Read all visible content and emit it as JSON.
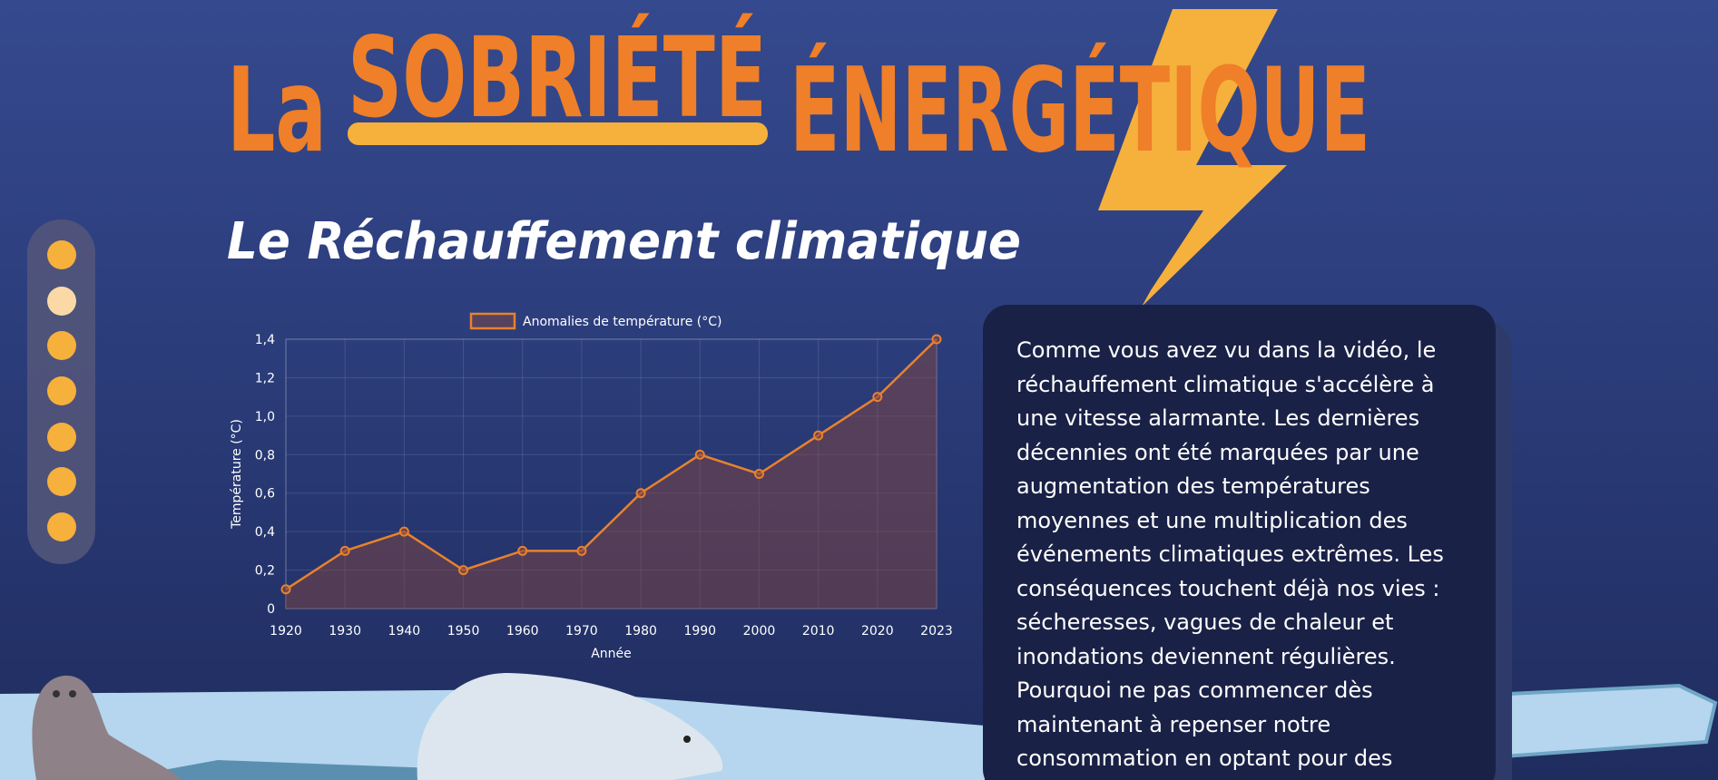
{
  "header": {
    "title_parts": [
      "La",
      "SOBRIÉTÉ",
      "ÉNERGÉTIQUE"
    ]
  },
  "section": {
    "title": "Le Réchauffement climatique",
    "paragraph": "Comme vous avez vu dans la vidéo, le réchauffement climatique s'accélère à une vitesse alarmante. Les dernières décennies ont été marquées par une augmentation des températures moyennes et une multiplication des événements climatiques extrêmes. Les conséquences touchent déjà nos vies : sécheresses, vagues de chaleur et inondations deviennent régulières. Pourquoi ne pas commencer dès maintenant à repenser notre consommation en optant pour des"
  },
  "chart_data": {
    "type": "line",
    "categories": [
      "1920",
      "1930",
      "1940",
      "1950",
      "1960",
      "1970",
      "1980",
      "1990",
      "2000",
      "2010",
      "2020",
      "2023"
    ],
    "series": [
      {
        "name": "Anomalies de température (°C)",
        "color": "#e8822e",
        "values": [
          0.1,
          0.3,
          0.4,
          0.2,
          0.3,
          0.3,
          0.6,
          0.8,
          0.7,
          0.9,
          1.1,
          1.4
        ]
      }
    ],
    "xlabel": "Année",
    "ylabel": "Température (°C)",
    "ylim": [
      0,
      1.4
    ],
    "yticks": [
      0,
      {
        "value": 0.2,
        "label": "0,2"
      },
      {
        "value": 0.4,
        "label": "0,4"
      },
      {
        "value": 0.6,
        "label": "0,6"
      },
      {
        "value": 0.8,
        "label": "0,8"
      },
      {
        "value": 1.0,
        "label": "1,0"
      },
      {
        "value": 1.2,
        "label": "1,2"
      },
      {
        "value": 1.4,
        "label": "1,4"
      }
    ],
    "grid": true,
    "fill": true,
    "legend": "top"
  }
}
